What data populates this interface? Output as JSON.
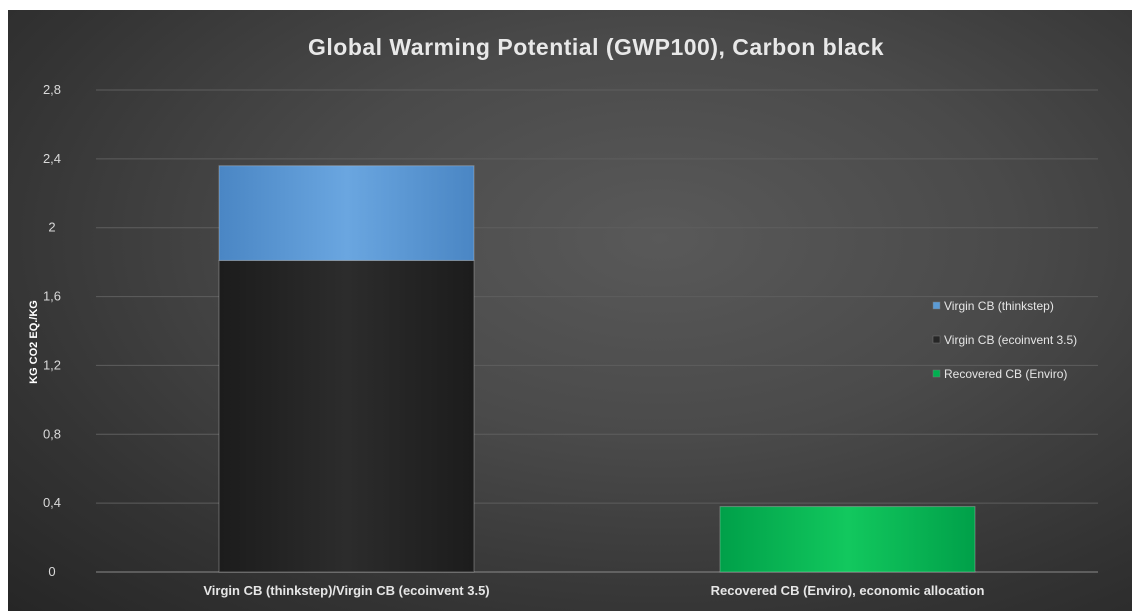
{
  "chart_data": {
    "type": "bar",
    "stacked": true,
    "title": "Global Warming Potential (GWP100), Carbon black",
    "xlabel": "",
    "ylabel": "KG CO2 EQ./KG",
    "ylim": [
      0,
      2.8
    ],
    "yticks": [
      "0",
      "0,4",
      "0,8",
      "1,2",
      "1,6",
      "2",
      "2,4",
      "2,8"
    ],
    "ytick_values": [
      0,
      0.4,
      0.8,
      1.2,
      1.6,
      2.0,
      2.4,
      2.8
    ],
    "grid": true,
    "legend_position": "right",
    "categories": [
      "Virgin CB (thinkstep)/Virgin CB (ecoinvent 3.5)",
      "Recovered CB (Enviro), economic allocation"
    ],
    "series": [
      {
        "name": "Recovered CB (Enviro)",
        "color": "#00b050",
        "values": [
          0,
          0.38
        ]
      },
      {
        "name": "Virgin CB (ecoinvent 3.5)",
        "color": "#262626",
        "values": [
          1.81,
          0
        ]
      },
      {
        "name": "Virgin CB (thinkstep)",
        "color": "#5b9bd5",
        "values": [
          0.55,
          0
        ]
      }
    ],
    "legend_order": [
      "Virgin CB (thinkstep)",
      "Virgin CB (ecoinvent 3.5)",
      "Recovered CB (Enviro)"
    ]
  }
}
